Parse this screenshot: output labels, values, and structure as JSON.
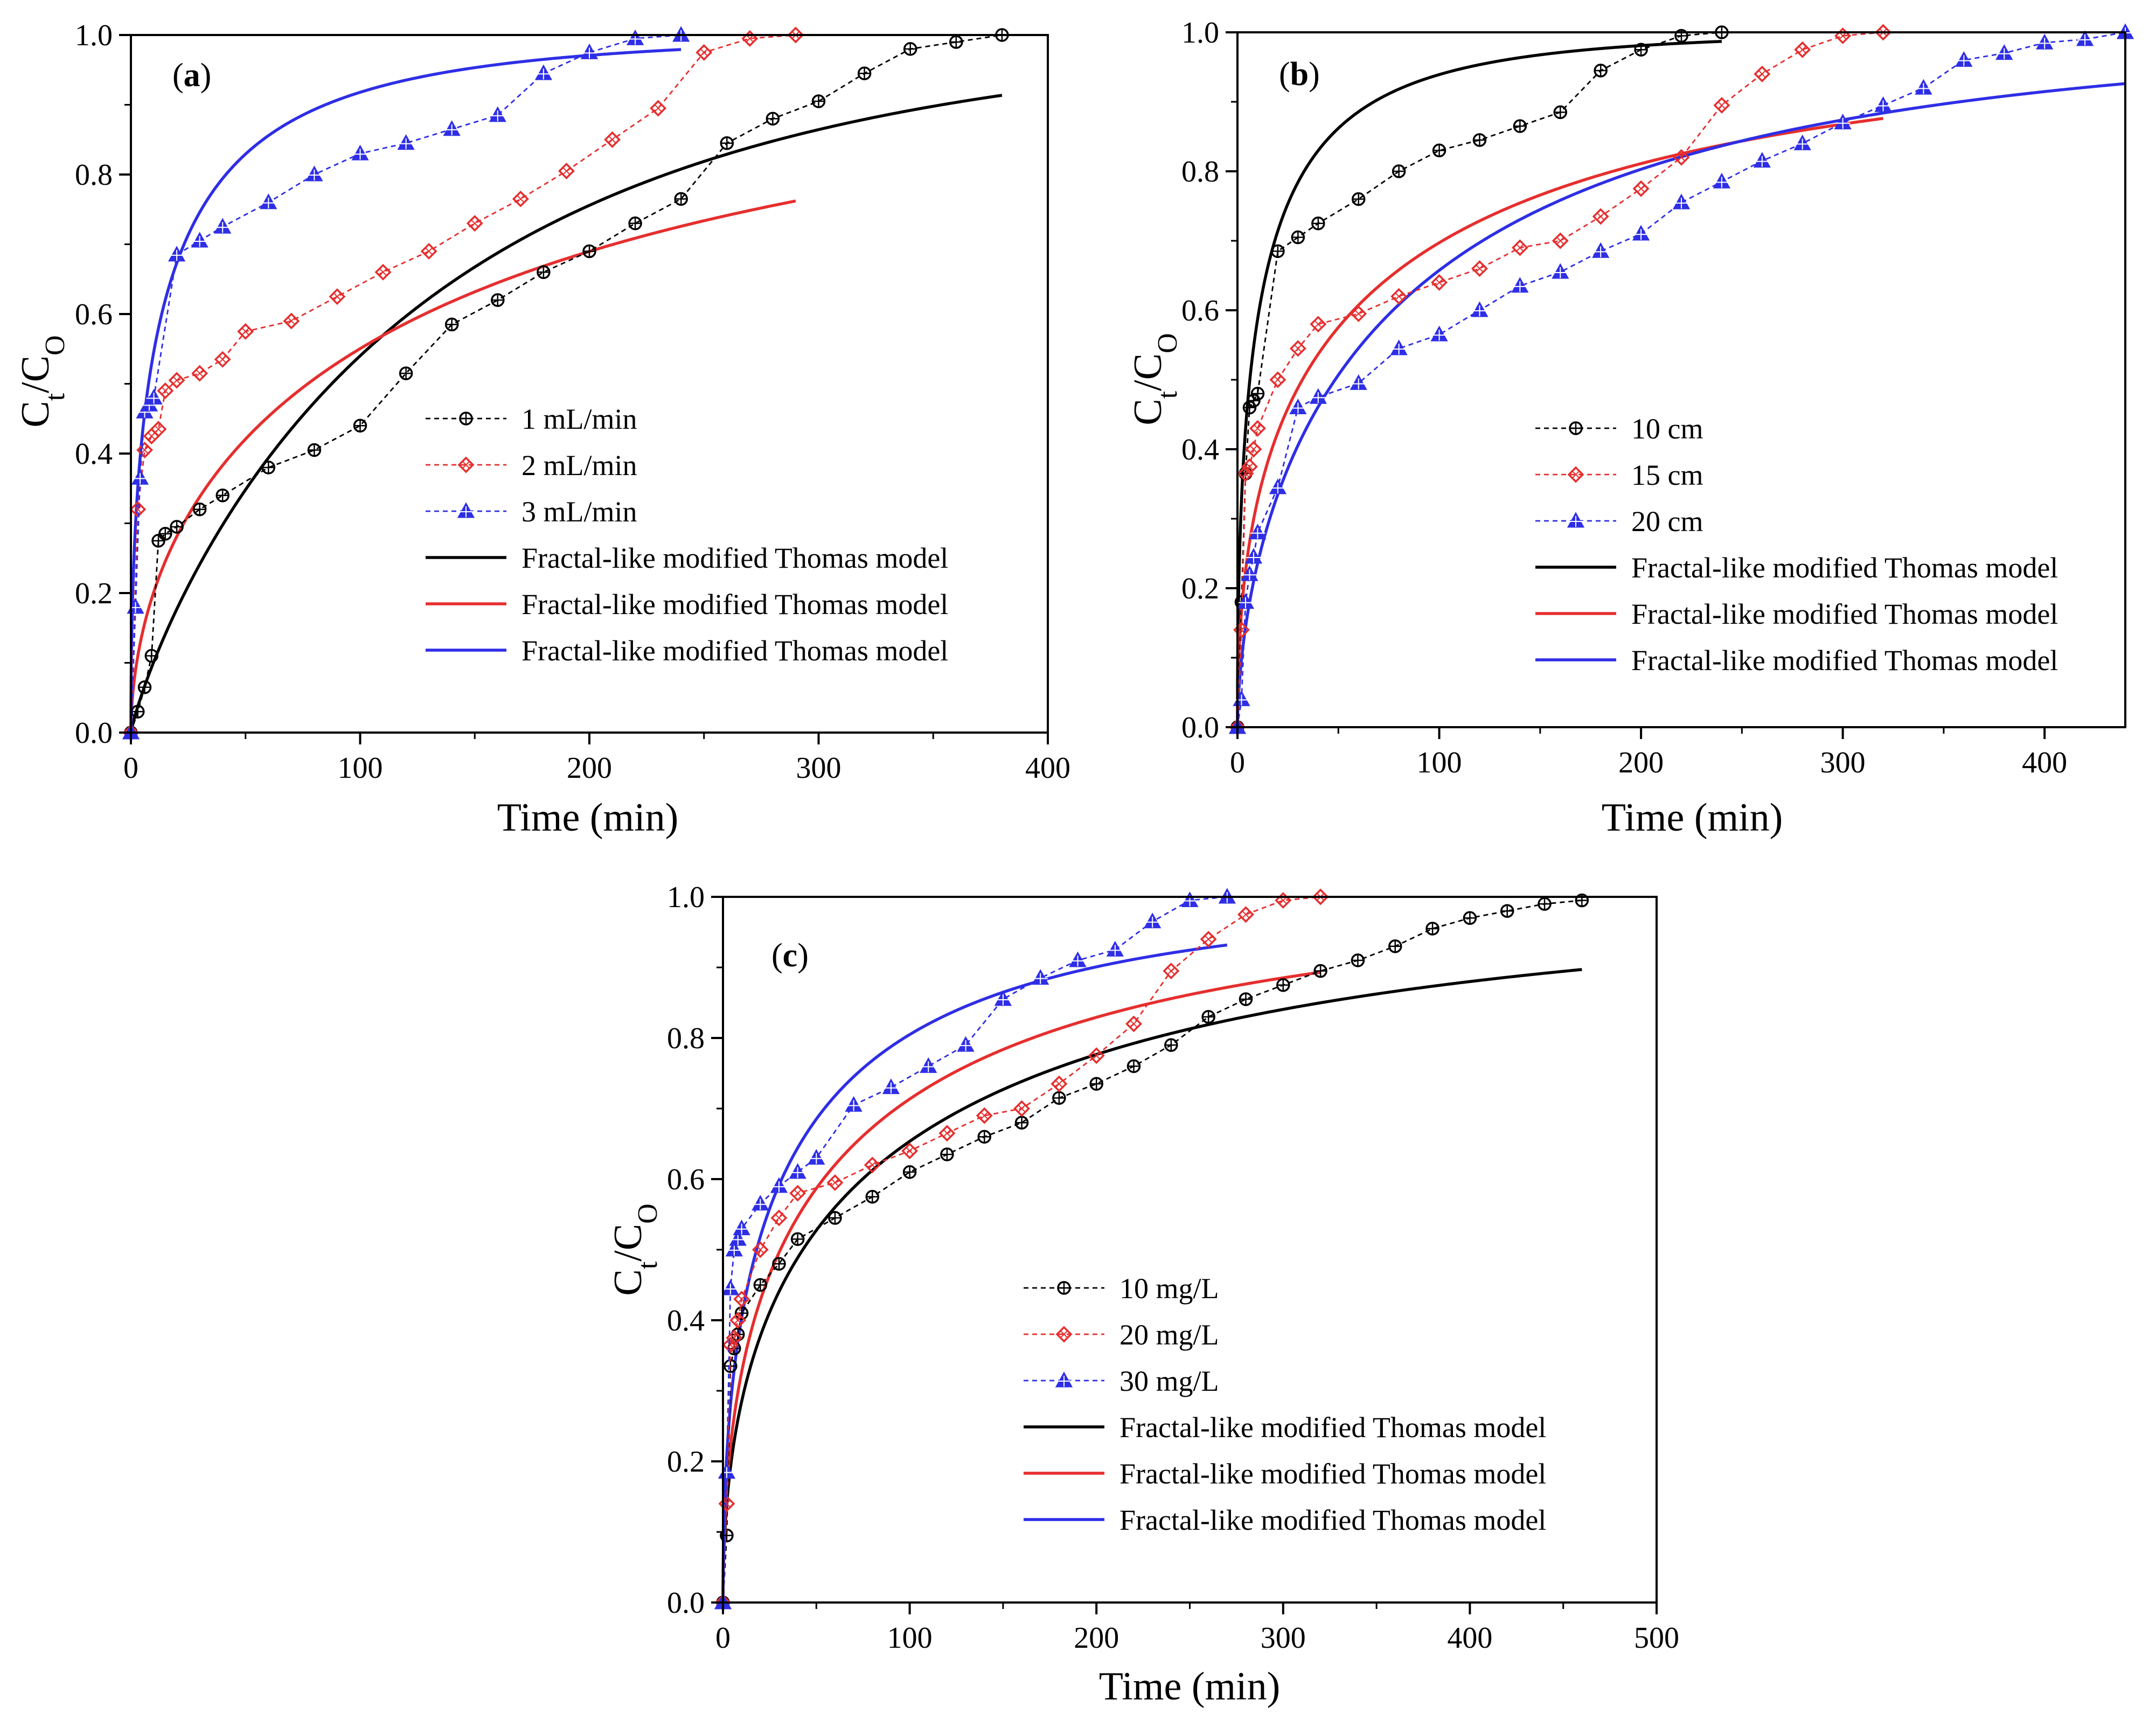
{
  "legend_model_label": "Fractal-like modified Thomas model",
  "chart_data": [
    {
      "panel_label": "(a)",
      "panel_letter": "a",
      "type": "line",
      "xlabel": "Time (min)",
      "ylabel_main": "C",
      "ylabel_sub1": "t",
      "ylabel_sub2": "O",
      "xlim": [
        0,
        400
      ],
      "ylim": [
        0,
        1.0
      ],
      "xticks": [
        0,
        100,
        200,
        300,
        400
      ],
      "yticks": [
        0.0,
        0.2,
        0.4,
        0.6,
        0.8,
        1.0
      ],
      "series": [
        {
          "name": "1 mL/min",
          "color": "#000000",
          "marker": "circle",
          "x": [
            0,
            3,
            6,
            9,
            12,
            15,
            20,
            30,
            40,
            60,
            80,
            100,
            120,
            140,
            160,
            180,
            200,
            220,
            240,
            260,
            280,
            300,
            320,
            340,
            360,
            380
          ],
          "y": [
            0.0,
            0.03,
            0.065,
            0.11,
            0.275,
            0.285,
            0.295,
            0.32,
            0.34,
            0.38,
            0.405,
            0.44,
            0.515,
            0.585,
            0.62,
            0.66,
            0.69,
            0.73,
            0.765,
            0.845,
            0.88,
            0.905,
            0.945,
            0.98,
            0.99,
            1.0
          ]
        },
        {
          "name": "2 mL/min",
          "color": "#e62e2e",
          "marker": "diamond",
          "x": [
            0,
            3,
            6,
            9,
            12,
            15,
            20,
            30,
            40,
            50,
            70,
            90,
            110,
            130,
            150,
            170,
            190,
            210,
            230,
            250,
            270,
            290
          ],
          "y": [
            0.0,
            0.32,
            0.405,
            0.425,
            0.435,
            0.49,
            0.505,
            0.515,
            0.535,
            0.575,
            0.59,
            0.625,
            0.66,
            0.69,
            0.73,
            0.765,
            0.805,
            0.85,
            0.895,
            0.975,
            0.995,
            1.0
          ]
        },
        {
          "name": "3 mL/min",
          "color": "#2e2ee6",
          "marker": "triangle",
          "x": [
            0,
            2,
            4,
            6,
            8,
            10,
            20,
            30,
            40,
            60,
            80,
            100,
            120,
            140,
            160,
            180,
            200,
            220,
            240
          ],
          "y": [
            0.0,
            0.18,
            0.365,
            0.46,
            0.47,
            0.48,
            0.685,
            0.705,
            0.725,
            0.76,
            0.8,
            0.83,
            0.845,
            0.865,
            0.885,
            0.945,
            0.975,
            0.995,
            1.0
          ]
        }
      ],
      "models": [
        {
          "name": "Fractal-like modified Thomas model",
          "color": "#000000",
          "x_end": 380,
          "k": 0.0148,
          "a": 0.86
        },
        {
          "name": "Fractal-like modified Thomas model",
          "color": "#e62e2e",
          "x_end": 290,
          "k": 0.0635,
          "a": 0.55
        },
        {
          "name": "Fractal-like modified Thomas model",
          "color": "#2e2ee6",
          "x_end": 240,
          "k": 0.25,
          "a": 0.5
        }
      ]
    },
    {
      "panel_label": "(b)",
      "panel_letter": "b",
      "type": "line",
      "xlabel": "Time (min)",
      "ylabel_main": "C",
      "ylabel_sub1": "t",
      "ylabel_sub2": "O",
      "xlim": [
        0,
        440
      ],
      "ylim": [
        0,
        1.0
      ],
      "xticks": [
        0,
        100,
        200,
        300,
        400
      ],
      "yticks": [
        0.0,
        0.2,
        0.4,
        0.6,
        0.8,
        1.0
      ],
      "series": [
        {
          "name": "10 cm",
          "color": "#000000",
          "marker": "circle",
          "x": [
            0,
            2,
            4,
            6,
            8,
            10,
            20,
            30,
            40,
            60,
            80,
            100,
            120,
            140,
            160,
            180,
            200,
            220,
            240
          ],
          "y": [
            0.0,
            0.18,
            0.365,
            0.46,
            0.47,
            0.48,
            0.685,
            0.705,
            0.725,
            0.76,
            0.8,
            0.83,
            0.845,
            0.865,
            0.885,
            0.945,
            0.975,
            0.995,
            1.0
          ]
        },
        {
          "name": "15 cm",
          "color": "#e62e2e",
          "marker": "diamond",
          "x": [
            0,
            2,
            4,
            6,
            8,
            10,
            20,
            30,
            40,
            60,
            80,
            100,
            120,
            140,
            160,
            180,
            200,
            220,
            240,
            260,
            280,
            300,
            320
          ],
          "y": [
            0.0,
            0.14,
            0.365,
            0.375,
            0.4,
            0.43,
            0.5,
            0.545,
            0.58,
            0.595,
            0.62,
            0.64,
            0.66,
            0.69,
            0.7,
            0.735,
            0.775,
            0.82,
            0.895,
            0.94,
            0.975,
            0.995,
            1.0
          ]
        },
        {
          "name": "20 cm",
          "color": "#2e2ee6",
          "marker": "triangle",
          "x": [
            0,
            2,
            4,
            6,
            8,
            10,
            20,
            30,
            40,
            60,
            80,
            100,
            120,
            140,
            160,
            180,
            200,
            220,
            240,
            260,
            280,
            300,
            320,
            340,
            360,
            380,
            400,
            420,
            440
          ],
          "y": [
            0.0,
            0.04,
            0.18,
            0.22,
            0.245,
            0.28,
            0.345,
            0.46,
            0.475,
            0.495,
            0.545,
            0.565,
            0.6,
            0.635,
            0.655,
            0.685,
            0.71,
            0.755,
            0.785,
            0.815,
            0.84,
            0.87,
            0.895,
            0.92,
            0.96,
            0.97,
            0.985,
            0.99,
            1.0
          ]
        }
      ],
      "models": [
        {
          "name": "Fractal-like modified Thomas model",
          "color": "#000000",
          "x_end": 240,
          "k": 0.28,
          "a": 0.5
        },
        {
          "name": "Fractal-like modified Thomas model",
          "color": "#e62e2e",
          "x_end": 320,
          "k": 0.131,
          "a": 0.48
        },
        {
          "name": "Fractal-like modified Thomas model",
          "color": "#2e2ee6",
          "x_end": 440,
          "k": 0.0676,
          "a": 0.6
        }
      ]
    },
    {
      "panel_label": "(c)",
      "panel_letter": "c",
      "type": "line",
      "xlabel": "Time (min)",
      "ylabel_main": "C",
      "ylabel_sub1": "t",
      "ylabel_sub2": "O",
      "xlim": [
        0,
        500
      ],
      "ylim": [
        0,
        1.0
      ],
      "xticks": [
        0,
        100,
        200,
        300,
        400,
        500
      ],
      "yticks": [
        0.0,
        0.2,
        0.4,
        0.6,
        0.8,
        1.0
      ],
      "series": [
        {
          "name": "10 mg/L",
          "color": "#000000",
          "marker": "circle",
          "x": [
            0,
            2,
            4,
            6,
            8,
            10,
            20,
            30,
            40,
            60,
            80,
            100,
            120,
            140,
            160,
            180,
            200,
            220,
            240,
            260,
            280,
            300,
            320,
            340,
            360,
            380,
            400,
            420,
            440,
            460
          ],
          "y": [
            0.0,
            0.095,
            0.335,
            0.36,
            0.38,
            0.41,
            0.45,
            0.48,
            0.515,
            0.545,
            0.575,
            0.61,
            0.635,
            0.66,
            0.68,
            0.715,
            0.735,
            0.76,
            0.79,
            0.83,
            0.855,
            0.875,
            0.895,
            0.91,
            0.93,
            0.955,
            0.97,
            0.98,
            0.99,
            0.995
          ]
        },
        {
          "name": "20 mg/L",
          "color": "#e62e2e",
          "marker": "diamond",
          "x": [
            0,
            2,
            4,
            6,
            8,
            10,
            20,
            30,
            40,
            60,
            80,
            100,
            120,
            140,
            160,
            180,
            200,
            220,
            240,
            260,
            280,
            300,
            320
          ],
          "y": [
            0.0,
            0.14,
            0.365,
            0.375,
            0.4,
            0.43,
            0.5,
            0.545,
            0.58,
            0.595,
            0.62,
            0.64,
            0.665,
            0.69,
            0.7,
            0.735,
            0.775,
            0.82,
            0.895,
            0.94,
            0.975,
            0.995,
            1.0
          ]
        },
        {
          "name": "30 mg/L",
          "color": "#2e2ee6",
          "marker": "triangle",
          "x": [
            0,
            2,
            4,
            6,
            8,
            10,
            20,
            30,
            40,
            50,
            70,
            90,
            110,
            130,
            150,
            170,
            190,
            210,
            230,
            250,
            270
          ],
          "y": [
            0.0,
            0.185,
            0.445,
            0.5,
            0.515,
            0.53,
            0.565,
            0.59,
            0.61,
            0.63,
            0.705,
            0.73,
            0.76,
            0.79,
            0.855,
            0.885,
            0.91,
            0.925,
            0.965,
            0.995,
            1.0
          ]
        }
      ],
      "models": [
        {
          "name": "Fractal-like modified Thomas model",
          "color": "#000000",
          "x_end": 460,
          "k": 0.106,
          "a": 0.5
        },
        {
          "name": "Fractal-like modified Thomas model",
          "color": "#e62e2e",
          "x_end": 320,
          "k": 0.125,
          "a": 0.5
        },
        {
          "name": "Fractal-like modified Thomas model",
          "color": "#2e2ee6",
          "x_end": 270,
          "k": 0.1634,
          "a": 0.5
        }
      ]
    }
  ]
}
